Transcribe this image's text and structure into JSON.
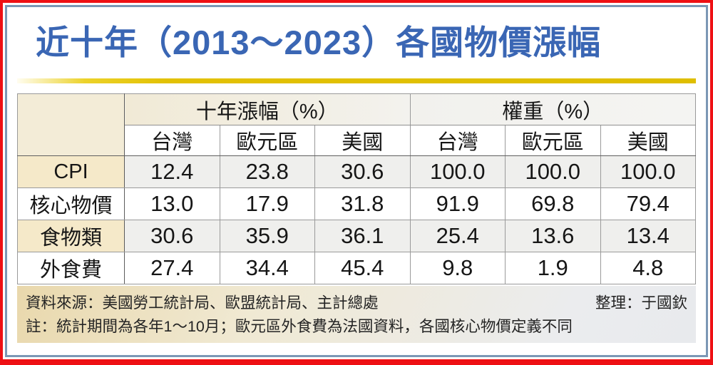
{
  "chart_data": {
    "type": "table",
    "title": "近十年（2013～2023）各國物價漲幅",
    "column_groups": [
      {
        "label": "十年漲幅（%）",
        "span": 3
      },
      {
        "label": "權重（%）",
        "span": 3
      }
    ],
    "sub_headers": [
      "台灣",
      "歐元區",
      "美國",
      "台灣",
      "歐元區",
      "美國"
    ],
    "rows": [
      {
        "label": "CPI",
        "values": [
          "12.4",
          "23.8",
          "30.6",
          "100.0",
          "100.0",
          "100.0"
        ]
      },
      {
        "label": "核心物價",
        "values": [
          "13.0",
          "17.9",
          "31.8",
          "91.9",
          "69.8",
          "79.4"
        ]
      },
      {
        "label": "食物類",
        "values": [
          "30.6",
          "35.9",
          "36.1",
          "25.4",
          "13.6",
          "13.4"
        ]
      },
      {
        "label": "外食費",
        "values": [
          "27.4",
          "34.4",
          "45.4",
          "9.8",
          "1.9",
          "4.8"
        ]
      }
    ]
  },
  "footer": {
    "source": "資料來源：美國勞工統計局、歐盟統計局、主計總處",
    "editor": "整理：于國欽",
    "note": "註：統計期間為各年1～10月；歐元區外食費為法國資料，各國核心物價定義不同"
  },
  "colors": {
    "title_blue": "#3a66b4",
    "frame_red": "#ee1014",
    "frame_steel_blue": "#7b97b5",
    "gold_rule": "#dfbe00",
    "label_cream": "#f5e9c9",
    "alt_row_gray": "#efefed"
  }
}
